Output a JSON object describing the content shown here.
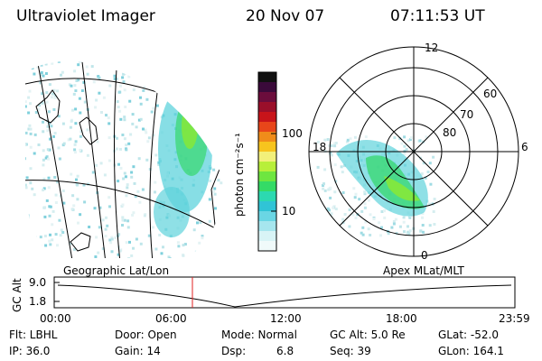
{
  "header": {
    "instrument": "Ultraviolet Imager",
    "date": "20 Nov 07",
    "time": "07:11:53 UT"
  },
  "colorbar": {
    "unit_label": "photon cm⁻²s⁻¹",
    "tick_labels": [
      "100",
      "10"
    ],
    "colors": [
      "#111111",
      "#3a0a3a",
      "#6b0d3c",
      "#9a0f2a",
      "#c8141a",
      "#e8461a",
      "#f08c1a",
      "#f7c41e",
      "#f2f07a",
      "#b8ef3a",
      "#6ee640",
      "#34db66",
      "#2cd9b0",
      "#30c4d6",
      "#6ad6e4",
      "#a6e6ee",
      "#d8f4f6",
      "#f0fafa"
    ]
  },
  "polar_plot": {
    "mlt_labels": [
      "12",
      "18",
      "6",
      "0"
    ],
    "lat_labels": [
      "60",
      "70",
      "80"
    ]
  },
  "timeline": {
    "left_label": "Geographic Lat/Lon",
    "right_label": "Apex MLat/MLT",
    "y_axis_label": "GC Alt",
    "y_ticks": [
      "9.0",
      "1.8"
    ],
    "x_ticks": [
      "00:00",
      "06:00",
      "12:00",
      "18:00",
      "23:59"
    ],
    "marker_color": "#e02020"
  },
  "info": {
    "flt": "Flt: LBHL",
    "ip": "IP: 36.0",
    "door": "Door: Open",
    "gain": "Gain: 14",
    "mode": "Mode: Normal",
    "dsp_label": "Dsp:",
    "dsp_value": "6.8",
    "gc_alt": "GC Alt: 5.0 Re",
    "seq": "Seq: 39",
    "glat": "GLat: -52.0",
    "glon": "GLon: 164.1"
  }
}
